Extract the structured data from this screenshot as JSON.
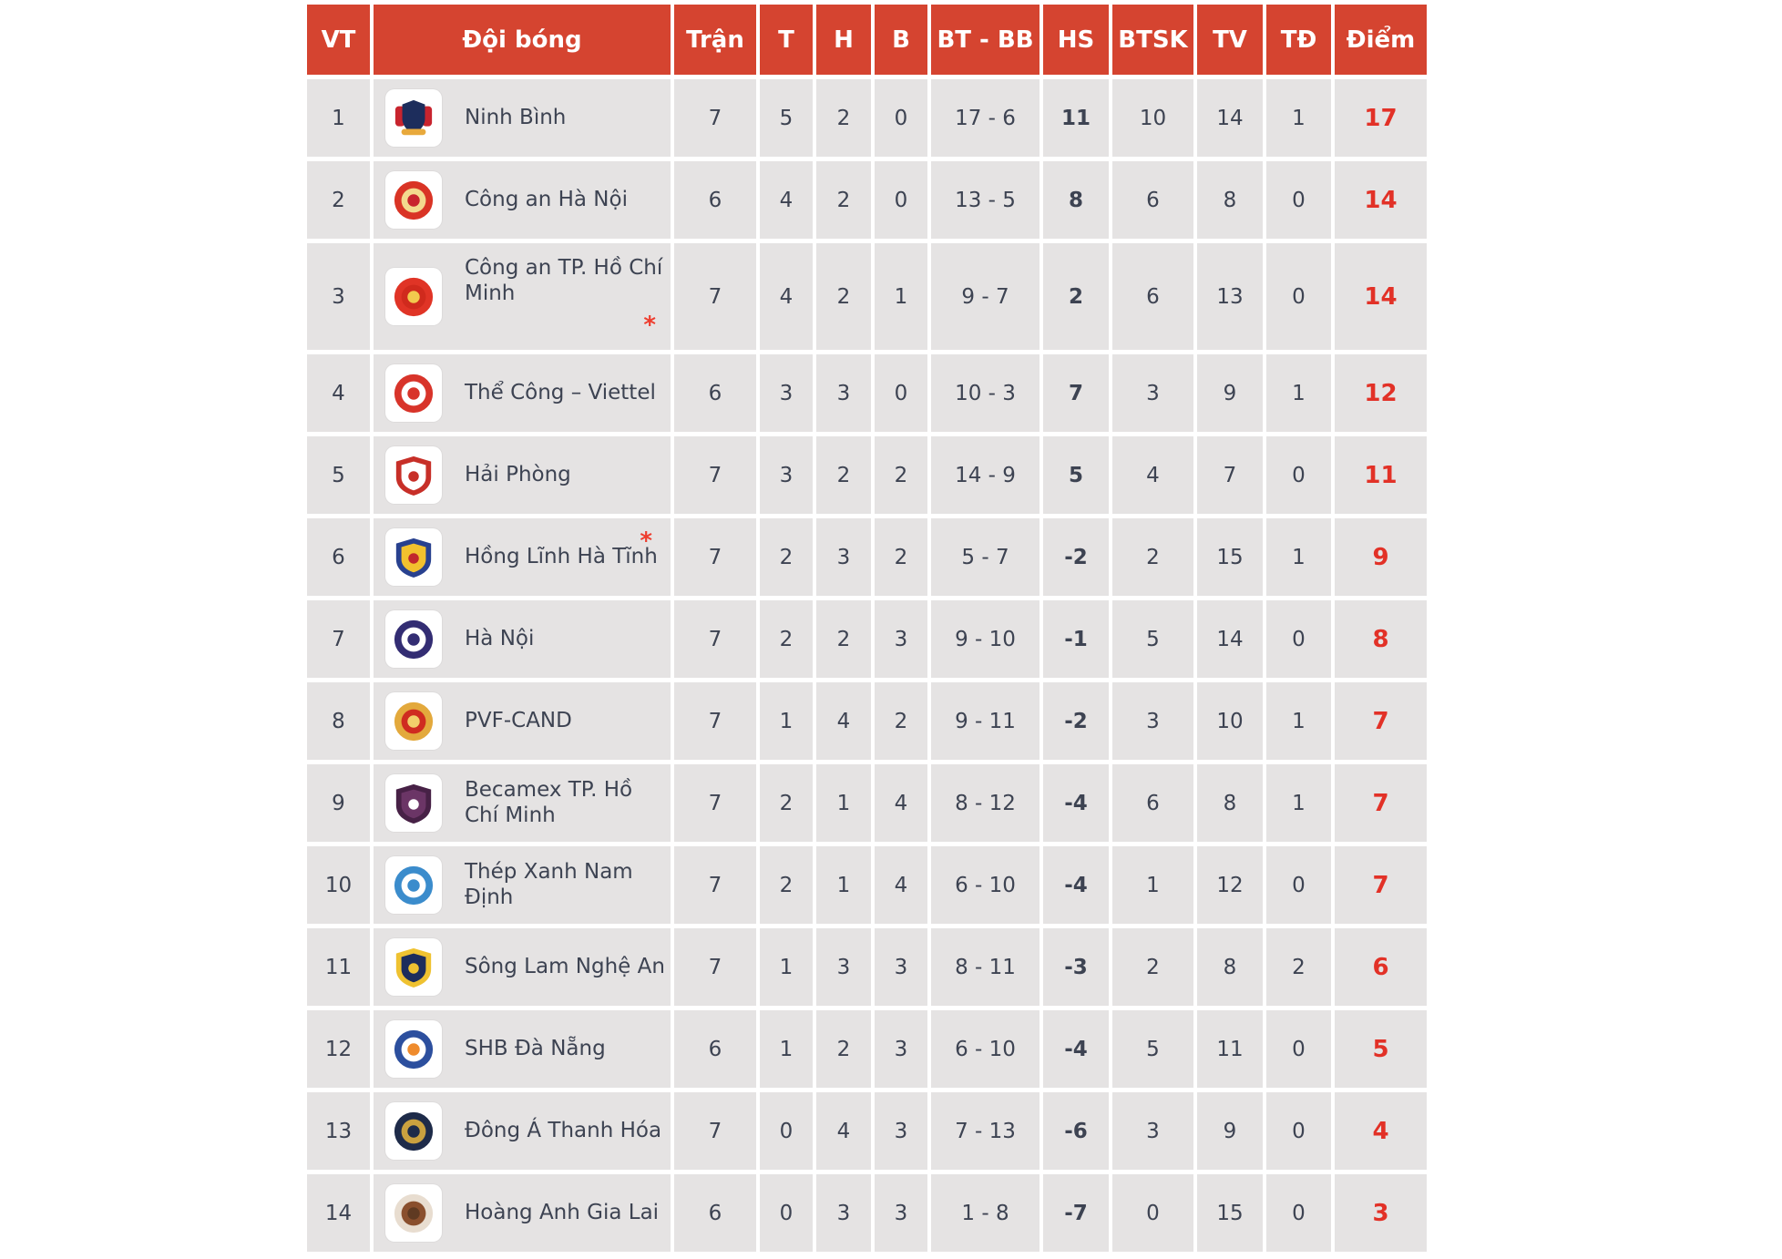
{
  "table": {
    "columns": [
      "VT",
      "Đội bóng",
      "Trận",
      "T",
      "H",
      "B",
      "BT - BB",
      "HS",
      "BTSK",
      "TV",
      "TĐ",
      "Điểm"
    ],
    "colors": {
      "header_bg": "#d54430",
      "row_bg": "#e5e3e3",
      "text": "#3d4352",
      "points_red": "#e23127",
      "note_red": "#ee3d2e"
    },
    "rows": [
      {
        "pos": "1",
        "team": "Ninh Bình",
        "p": "7",
        "w": "5",
        "d": "2",
        "l": "0",
        "gf_ga": "17 - 6",
        "gd": "11",
        "btsk": "10",
        "tv": "14",
        "td": "1",
        "pts": "17",
        "note": "",
        "note_pos": "",
        "tall": false,
        "logo": {
          "icon": "ninh-binh-crest-icon",
          "shape": "crest",
          "colors": [
            "#1d2d5c",
            "#c8242e",
            "#e8a93c"
          ]
        }
      },
      {
        "pos": "2",
        "team": "Công an Hà Nội",
        "p": "6",
        "w": "4",
        "d": "2",
        "l": "0",
        "gf_ga": "13 - 5",
        "gd": "8",
        "btsk": "6",
        "tv": "8",
        "td": "0",
        "pts": "14",
        "note": "",
        "note_pos": "",
        "tall": false,
        "logo": {
          "icon": "cong-an-ha-noi-badge-icon",
          "shape": "circle",
          "colors": [
            "#d93425",
            "#f3d98e",
            "#c8242e"
          ]
        }
      },
      {
        "pos": "3",
        "team": "Công an TP. Hồ Chí Minh",
        "p": "7",
        "w": "4",
        "d": "2",
        "l": "1",
        "gf_ga": "9 - 7",
        "gd": "2",
        "btsk": "6",
        "tv": "13",
        "td": "0",
        "pts": "14",
        "note": "*",
        "note_pos": "below",
        "tall": true,
        "logo": {
          "icon": "cong-an-tphcm-badge-icon",
          "shape": "circle",
          "colors": [
            "#e03426",
            "#d02a1d",
            "#f2c94e"
          ]
        }
      },
      {
        "pos": "4",
        "team": "Thể Công – Viettel",
        "p": "6",
        "w": "3",
        "d": "3",
        "l": "0",
        "gf_ga": "10 - 3",
        "gd": "7",
        "btsk": "3",
        "tv": "9",
        "td": "1",
        "pts": "12",
        "note": "",
        "note_pos": "",
        "tall": false,
        "logo": {
          "icon": "the-cong-viettel-badge-icon",
          "shape": "circle",
          "colors": [
            "#d8342a",
            "#ffffff",
            "#d8342a"
          ]
        }
      },
      {
        "pos": "5",
        "team": "Hải Phòng",
        "p": "7",
        "w": "3",
        "d": "2",
        "l": "2",
        "gf_ga": "14 - 9",
        "gd": "5",
        "btsk": "4",
        "tv": "7",
        "td": "0",
        "pts": "11",
        "note": "",
        "note_pos": "",
        "tall": false,
        "logo": {
          "icon": "hai-phong-shield-icon",
          "shape": "shield",
          "colors": [
            "#c72f28",
            "#ffffff",
            "#c72f28"
          ]
        }
      },
      {
        "pos": "6",
        "team": "Hồng Lĩnh Hà Tĩnh",
        "p": "7",
        "w": "2",
        "d": "3",
        "l": "2",
        "gf_ga": "5 - 7",
        "gd": "-2",
        "btsk": "2",
        "tv": "15",
        "td": "1",
        "pts": "9",
        "note": "*",
        "note_pos": "above",
        "tall": false,
        "logo": {
          "icon": "hong-linh-ha-tinh-shield-icon",
          "shape": "shield",
          "colors": [
            "#28418f",
            "#f2c12e",
            "#c1272d"
          ]
        }
      },
      {
        "pos": "7",
        "team": "Hà Nội",
        "p": "7",
        "w": "2",
        "d": "2",
        "l": "3",
        "gf_ga": "9 - 10",
        "gd": "-1",
        "btsk": "5",
        "tv": "14",
        "td": "0",
        "pts": "8",
        "note": "",
        "note_pos": "",
        "tall": false,
        "logo": {
          "icon": "ha-noi-badge-icon",
          "shape": "circle",
          "colors": [
            "#332d73",
            "#ffffff",
            "#332d73"
          ]
        }
      },
      {
        "pos": "8",
        "team": "PVF-CAND",
        "p": "7",
        "w": "1",
        "d": "4",
        "l": "2",
        "gf_ga": "9 - 11",
        "gd": "-2",
        "btsk": "3",
        "tv": "10",
        "td": "1",
        "pts": "7",
        "note": "",
        "note_pos": "",
        "tall": false,
        "logo": {
          "icon": "pvf-cand-badge-icon",
          "shape": "circle",
          "colors": [
            "#e3a93c",
            "#cf2b20",
            "#f2cf6b"
          ]
        }
      },
      {
        "pos": "9",
        "team": "Becamex TP. Hồ Chí Minh",
        "p": "7",
        "w": "2",
        "d": "1",
        "l": "4",
        "gf_ga": "8 - 12",
        "gd": "-4",
        "btsk": "6",
        "tv": "8",
        "td": "1",
        "pts": "7",
        "note": "",
        "note_pos": "",
        "tall": false,
        "logo": {
          "icon": "becamex-tphcm-shield-icon",
          "shape": "shield",
          "colors": [
            "#472146",
            "#6b3566",
            "#ffffff"
          ]
        }
      },
      {
        "pos": "10",
        "team": "Thép Xanh Nam Định",
        "p": "7",
        "w": "2",
        "d": "1",
        "l": "4",
        "gf_ga": "6 - 10",
        "gd": "-4",
        "btsk": "1",
        "tv": "12",
        "td": "0",
        "pts": "7",
        "note": "",
        "note_pos": "",
        "tall": false,
        "logo": {
          "icon": "thep-xanh-nam-dinh-badge-icon",
          "shape": "circle",
          "colors": [
            "#3b8ccc",
            "#ffffff",
            "#3b8ccc"
          ]
        }
      },
      {
        "pos": "11",
        "team": "Sông Lam Nghệ An",
        "p": "7",
        "w": "1",
        "d": "3",
        "l": "3",
        "gf_ga": "8 - 11",
        "gd": "-3",
        "btsk": "2",
        "tv": "8",
        "td": "2",
        "pts": "6",
        "note": "",
        "note_pos": "",
        "tall": false,
        "logo": {
          "icon": "song-lam-nghe-an-shield-icon",
          "shape": "shield",
          "colors": [
            "#efc231",
            "#1d2d5c",
            "#efc231"
          ]
        }
      },
      {
        "pos": "12",
        "team": "SHB Đà Nẵng",
        "p": "6",
        "w": "1",
        "d": "2",
        "l": "3",
        "gf_ga": "6 - 10",
        "gd": "-4",
        "btsk": "5",
        "tv": "11",
        "td": "0",
        "pts": "5",
        "note": "",
        "note_pos": "",
        "tall": false,
        "logo": {
          "icon": "shb-da-nang-badge-icon",
          "shape": "circle",
          "colors": [
            "#2c4f9e",
            "#ffffff",
            "#ef8b2c"
          ]
        }
      },
      {
        "pos": "13",
        "team": "Đông Á Thanh Hóa",
        "p": "7",
        "w": "0",
        "d": "4",
        "l": "3",
        "gf_ga": "7 - 13",
        "gd": "-6",
        "btsk": "3",
        "tv": "9",
        "td": "0",
        "pts": "4",
        "note": "",
        "note_pos": "",
        "tall": false,
        "logo": {
          "icon": "dong-a-thanh-hoa-badge-icon",
          "shape": "circle",
          "colors": [
            "#1e2b49",
            "#caa13f",
            "#1e2b49"
          ]
        }
      },
      {
        "pos": "14",
        "team": "Hoàng Anh Gia Lai",
        "p": "6",
        "w": "0",
        "d": "3",
        "l": "3",
        "gf_ga": "1 - 8",
        "gd": "-7",
        "btsk": "0",
        "tv": "15",
        "td": "0",
        "pts": "3",
        "note": "",
        "note_pos": "",
        "tall": false,
        "logo": {
          "icon": "hoang-anh-gia-lai-badge-icon",
          "shape": "circle",
          "colors": [
            "#e8ddd0",
            "#8a4f2d",
            "#5f3a22"
          ]
        }
      }
    ]
  }
}
